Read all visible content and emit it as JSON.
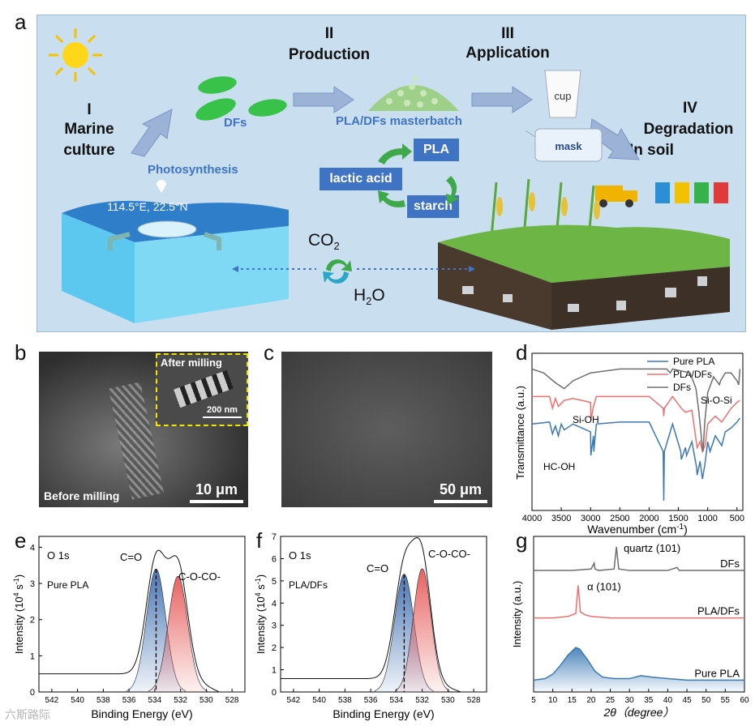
{
  "panels": {
    "a": "a",
    "b": "b",
    "c": "c",
    "d": "d",
    "e": "e",
    "f": "f",
    "g": "g"
  },
  "schematic": {
    "stage1_num": "I",
    "stage1_line1": "Marine",
    "stage1_line2": "culture",
    "stage2_num": "II",
    "stage2_label": "Production",
    "stage3_num": "III",
    "stage3_label": "Application",
    "stage4_num": "IV",
    "stage4_line1": "Degradation",
    "stage4_line2": "In soil",
    "dfs": "DFs",
    "masterbatch": "PLA/DFs masterbatch",
    "photosynthesis": "Photosynthesis",
    "coords": "114.5°E, 22.5°N",
    "pla": "PLA",
    "lactic_acid": "lactic acid",
    "starch": "starch",
    "co2": "CO",
    "co2_sub": "2",
    "h2o": "H",
    "h2o_sub": "2",
    "h2o_end": "O",
    "cup": "cup",
    "mask": "mask"
  },
  "sem_b": {
    "inset_label": "After milling",
    "inset_scale": "200 nm",
    "label": "Before milling",
    "scale": "10 μm"
  },
  "sem_c": {
    "scale": "50 μm"
  },
  "chart_data": [
    {
      "panel": "d",
      "type": "line",
      "xlabel": "Wavenumber (cm",
      "xlabel_sup": "-1",
      "xlabel_end": ")",
      "ylabel": "Transmittance (a.u.)",
      "xlim": [
        4000,
        400
      ],
      "xticks": [
        4000,
        3500,
        3000,
        2500,
        2000,
        1500,
        1000,
        500
      ],
      "annotations": [
        "Si-OH",
        "HC-OH",
        "Si-O-Si"
      ],
      "series": [
        {
          "name": "Pure PLA",
          "color": "#3b78b4",
          "x": [
            4000,
            3700,
            3650,
            3600,
            3550,
            3500,
            3450,
            3300,
            3000,
            2995,
            2950,
            2945,
            2900,
            2500,
            2000,
            1760,
            1750,
            1740,
            1600,
            1460,
            1450,
            1380,
            1360,
            1270,
            1190,
            1180,
            1130,
            1090,
            1045,
            1000,
            960,
            870,
            760,
            700,
            600,
            500,
            450
          ],
          "y": [
            0.44,
            0.45,
            0.39,
            0.43,
            0.38,
            0.44,
            0.41,
            0.44,
            0.4,
            0.28,
            0.38,
            0.3,
            0.44,
            0.45,
            0.45,
            0.3,
            0.05,
            0.3,
            0.44,
            0.3,
            0.26,
            0.32,
            0.28,
            0.35,
            0.22,
            0.18,
            0.25,
            0.16,
            0.24,
            0.35,
            0.3,
            0.38,
            0.33,
            0.4,
            0.42,
            0.45,
            0.47
          ]
        },
        {
          "name": "PLA/DFs",
          "color": "#ef6f6f",
          "x": [
            4000,
            3700,
            3650,
            3600,
            3550,
            3450,
            3300,
            3000,
            2995,
            2950,
            2900,
            2500,
            2000,
            1760,
            1750,
            1740,
            1600,
            1450,
            1380,
            1270,
            1180,
            1130,
            1090,
            1045,
            1000,
            870,
            760,
            600,
            500,
            450
          ],
          "y": [
            0.58,
            0.58,
            0.52,
            0.57,
            0.53,
            0.56,
            0.57,
            0.55,
            0.46,
            0.53,
            0.58,
            0.58,
            0.58,
            0.52,
            0.48,
            0.52,
            0.58,
            0.52,
            0.5,
            0.51,
            0.32,
            0.35,
            0.3,
            0.33,
            0.44,
            0.48,
            0.45,
            0.52,
            0.55,
            0.56
          ]
        },
        {
          "name": "DFs",
          "color": "#6e6e6e",
          "x": [
            4000,
            3800,
            3600,
            3450,
            3300,
            3000,
            2500,
            2000,
            1700,
            1640,
            1600,
            1300,
            1200,
            1150,
            1100,
            1080,
            1050,
            1000,
            900,
            800,
            780,
            700,
            600,
            500,
            470,
            450
          ],
          "y": [
            0.72,
            0.7,
            0.65,
            0.62,
            0.66,
            0.7,
            0.72,
            0.72,
            0.72,
            0.7,
            0.72,
            0.7,
            0.62,
            0.5,
            0.35,
            0.3,
            0.45,
            0.6,
            0.68,
            0.64,
            0.66,
            0.7,
            0.7,
            0.66,
            0.64,
            0.72
          ]
        }
      ],
      "ylim": [
        0,
        0.8
      ]
    },
    {
      "panel": "e",
      "type": "area",
      "label": "O 1s",
      "sample": "Pure PLA",
      "xlabel": "Binding Energy (eV)",
      "ylabel": "Intensity (10",
      "ylabel_sup": "4",
      "ylabel_mid": " s",
      "ylabel_sup2": "-1",
      "ylabel_end": ")",
      "xlim": [
        543,
        527
      ],
      "ylim": [
        0,
        4.3
      ],
      "xticks": [
        542,
        540,
        538,
        536,
        534,
        532,
        530,
        528
      ],
      "yticks": [
        0,
        1,
        2,
        3,
        4
      ],
      "peaks": [
        {
          "name": "C=O",
          "center": 533.9,
          "height": 3.4,
          "width": 0.75,
          "color": "#3f6fb0"
        },
        {
          "name": "C-O-CO-",
          "center": 532.2,
          "height": 3.2,
          "width": 0.75,
          "color": "#e85a5a"
        }
      ],
      "baseline": 0.5,
      "marker": 533.9
    },
    {
      "panel": "f",
      "type": "area",
      "label": "O 1s",
      "sample": "PLA/DFs",
      "xlabel": "Binding Energy (eV)",
      "ylabel": "Intensity (10",
      "ylabel_sup": "4",
      "ylabel_mid": " s",
      "ylabel_sup2": "-1",
      "ylabel_end": ")",
      "xlim": [
        543,
        527
      ],
      "ylim": [
        0,
        7
      ],
      "xticks": [
        542,
        540,
        538,
        536,
        534,
        532,
        530,
        528
      ],
      "yticks": [
        0,
        1,
        2,
        3,
        4,
        5,
        6,
        7
      ],
      "peaks": [
        {
          "name": "C=O",
          "center": 533.4,
          "height": 5.3,
          "width": 0.75,
          "color": "#3f6fb0"
        },
        {
          "name": "C-O-CO-",
          "center": 532.0,
          "height": 5.55,
          "width": 0.7,
          "color": "#e85a5a"
        }
      ],
      "baseline": 0.6,
      "marker": 533.4
    },
    {
      "panel": "g",
      "type": "line",
      "xlabel": "2θ（degree）",
      "ylabel": "Intensity (a.u.)",
      "xlim": [
        5,
        60
      ],
      "xticks": [
        5,
        10,
        15,
        20,
        25,
        30,
        35,
        40,
        45,
        50,
        55,
        60
      ],
      "annotations": [
        "quartz (101)",
        "α (101)"
      ],
      "series": [
        {
          "name": "DFs",
          "color": "#6e6e6e",
          "x": [
            5,
            10,
            15,
            20,
            20.8,
            21,
            22,
            26,
            26.6,
            27.2,
            30,
            40,
            42.4,
            43,
            50,
            55,
            60
          ],
          "y": [
            0.82,
            0.82,
            0.82,
            0.83,
            0.87,
            0.83,
            0.82,
            0.83,
            0.98,
            0.83,
            0.82,
            0.82,
            0.84,
            0.82,
            0.82,
            0.82,
            0.82
          ]
        },
        {
          "name": "PLA/DFs",
          "color": "#ef6f6f",
          "x": [
            5,
            10,
            14,
            16,
            16.6,
            17.2,
            18.5,
            20,
            25,
            30,
            35,
            40,
            45,
            50,
            55,
            60
          ],
          "y": [
            0.5,
            0.5,
            0.51,
            0.53,
            0.72,
            0.54,
            0.52,
            0.51,
            0.5,
            0.5,
            0.5,
            0.5,
            0.5,
            0.5,
            0.5,
            0.5
          ]
        },
        {
          "name": "Pure PLA",
          "color": "#3b78b4",
          "x": [
            5,
            8,
            10,
            12,
            14,
            16,
            17,
            19,
            21,
            23,
            26,
            30,
            33,
            36,
            40,
            45,
            50,
            55,
            60
          ],
          "y": [
            0.08,
            0.09,
            0.12,
            0.18,
            0.25,
            0.3,
            0.29,
            0.22,
            0.14,
            0.1,
            0.09,
            0.09,
            0.11,
            0.1,
            0.09,
            0.08,
            0.08,
            0.08,
            0.08
          ]
        }
      ],
      "ylim": [
        0,
        1.05
      ]
    }
  ],
  "watermark": "六斯路际"
}
